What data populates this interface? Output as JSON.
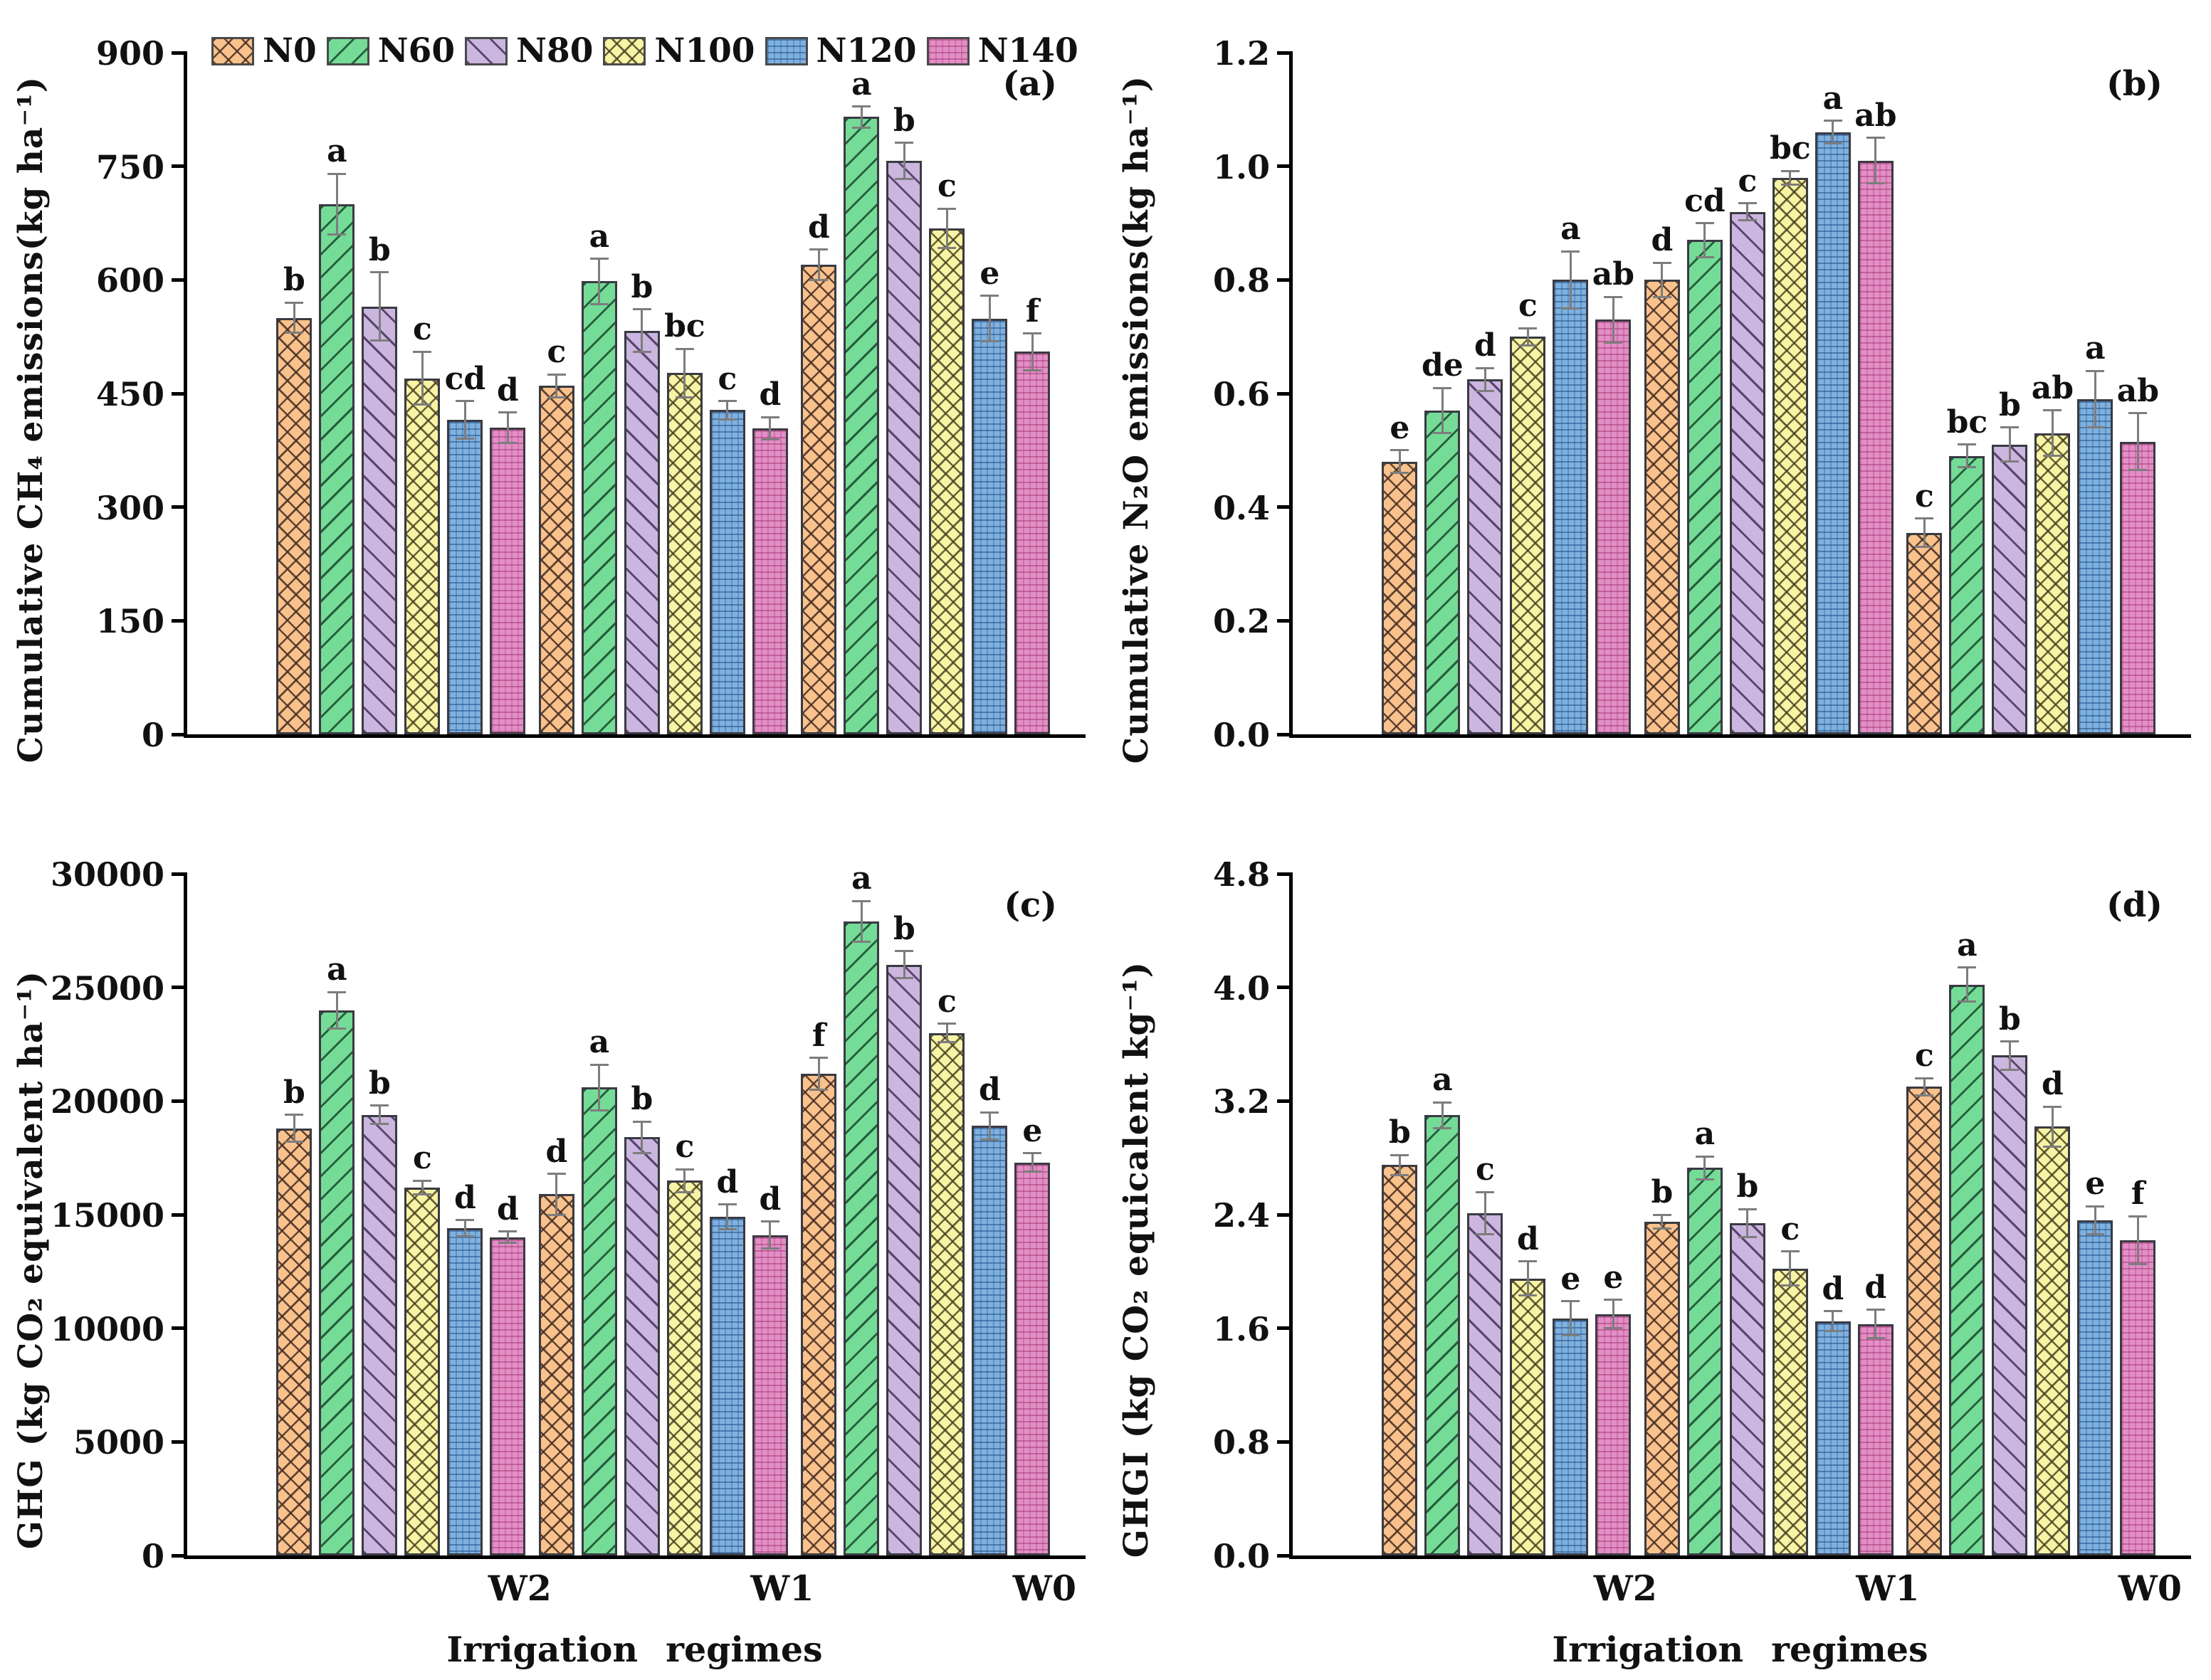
{
  "legend": {
    "items": [
      {
        "label": "N0",
        "color": "#F9C28C",
        "pattern": "diagonal-crosshatch"
      },
      {
        "label": "N60",
        "color": "#74DC97",
        "pattern": "diagonal-forward"
      },
      {
        "label": "N80",
        "color": "#CBB6DF",
        "pattern": "diagonal-back"
      },
      {
        "label": "N100",
        "color": "#F7F5A5",
        "pattern": "diagonal-crosshatch"
      },
      {
        "label": "N120",
        "color": "#7FB1DF",
        "pattern": "fine-grid"
      },
      {
        "label": "N140",
        "color": "#E28FC6",
        "pattern": "fine-grid"
      }
    ]
  },
  "chart_data": [
    {
      "type": "bar",
      "panel_label": "(a)",
      "ylabel": "Cumulative CH₄ emissions(kg ha⁻¹)",
      "xlabel": "",
      "ylim": [
        0,
        900
      ],
      "yticks": [
        "0",
        "150",
        "300",
        "450",
        "600",
        "750",
        "900"
      ],
      "grid": false,
      "legend_position": "top-left-inside",
      "series": [
        "N0",
        "N60",
        "N80",
        "N100",
        "N120",
        "N140"
      ],
      "categories": [
        "W2",
        "W1",
        "W0"
      ],
      "x_tick_labels": [],
      "groups": [
        {
          "category": "W2",
          "values": [
            550,
            700,
            565,
            470,
            415,
            405
          ],
          "errors": [
            20,
            40,
            45,
            35,
            25,
            20
          ],
          "letters": [
            "b",
            "a",
            "b",
            "c",
            "cd",
            "d"
          ]
        },
        {
          "category": "W1",
          "values": [
            460,
            598,
            533,
            477,
            428,
            404
          ],
          "errors": [
            15,
            30,
            28,
            32,
            12,
            15
          ],
          "letters": [
            "c",
            "a",
            "b",
            "bc",
            "c",
            "d"
          ]
        },
        {
          "category": "W0",
          "values": [
            620,
            815,
            757,
            668,
            549,
            505
          ],
          "errors": [
            20,
            14,
            24,
            26,
            30,
            24
          ],
          "letters": [
            "d",
            "a",
            "b",
            "c",
            "e",
            "f"
          ]
        }
      ]
    },
    {
      "type": "bar",
      "panel_label": "(b)",
      "ylabel": "Cumulative N₂O emissions(kg ha⁻¹)",
      "xlabel": "",
      "ylim": [
        0,
        1.2
      ],
      "yticks": [
        "0.0",
        "0.2",
        "0.4",
        "0.6",
        "0.8",
        "1.0",
        "1.2"
      ],
      "grid": false,
      "series": [
        "N0",
        "N60",
        "N80",
        "N100",
        "N120",
        "N140"
      ],
      "categories": [
        "W2",
        "W1",
        "W0"
      ],
      "x_tick_labels": [],
      "groups": [
        {
          "category": "W2",
          "values": [
            0.48,
            0.57,
            0.625,
            0.7,
            0.8,
            0.73
          ],
          "errors": [
            0.02,
            0.04,
            0.02,
            0.015,
            0.05,
            0.04
          ],
          "letters": [
            "e",
            "de",
            "d",
            "c",
            "a",
            "ab"
          ]
        },
        {
          "category": "W1",
          "values": [
            0.8,
            0.87,
            0.92,
            0.98,
            1.06,
            1.01
          ],
          "errors": [
            0.03,
            0.03,
            0.015,
            0.012,
            0.02,
            0.04
          ],
          "letters": [
            "d",
            "cd",
            "c",
            "bc",
            "a",
            "ab"
          ]
        },
        {
          "category": "W0",
          "values": [
            0.355,
            0.49,
            0.51,
            0.53,
            0.59,
            0.515
          ],
          "errors": [
            0.025,
            0.02,
            0.03,
            0.04,
            0.05,
            0.05
          ],
          "letters": [
            "c",
            "bc",
            "b",
            "ab",
            "a",
            "ab"
          ]
        }
      ]
    },
    {
      "type": "bar",
      "panel_label": "(c)",
      "ylabel": "GHG (kg CO₂ equivalent ha⁻¹)",
      "xlabel": "Irrigation  regimes",
      "ylim": [
        0,
        30000
      ],
      "yticks": [
        "0",
        "5000",
        "10000",
        "15000",
        "20000",
        "25000",
        "30000"
      ],
      "grid": false,
      "series": [
        "N0",
        "N60",
        "N80",
        "N100",
        "N120",
        "N140"
      ],
      "categories": [
        "W2",
        "W1",
        "W0"
      ],
      "x_tick_labels": [
        "W2",
        "W1",
        "W0"
      ],
      "groups": [
        {
          "category": "W2",
          "values": [
            18800,
            24000,
            19400,
            16200,
            14400,
            14000
          ],
          "errors": [
            600,
            800,
            400,
            300,
            350,
            250
          ],
          "letters": [
            "b",
            "a",
            "b",
            "c",
            "d",
            "d"
          ]
        },
        {
          "category": "W1",
          "values": [
            15900,
            20600,
            18400,
            16500,
            14900,
            14100
          ],
          "errors": [
            900,
            1000,
            700,
            500,
            550,
            600
          ],
          "letters": [
            "d",
            "a",
            "b",
            "c",
            "d",
            "d"
          ]
        },
        {
          "category": "W0",
          "values": [
            21200,
            27900,
            26000,
            23000,
            18900,
            17300
          ],
          "errors": [
            700,
            900,
            600,
            400,
            600,
            400
          ],
          "letters": [
            "f",
            "a",
            "b",
            "c",
            "d",
            "e"
          ]
        }
      ]
    },
    {
      "type": "bar",
      "panel_label": "(d)",
      "ylabel": "GHGI (kg CO₂ equicalent kg⁻¹)",
      "xlabel": "Irrigation  regimes",
      "ylim": [
        0,
        4.8
      ],
      "yticks": [
        "0.0",
        "0.8",
        "1.6",
        "2.4",
        "3.2",
        "4.0",
        "4.8"
      ],
      "grid": false,
      "series": [
        "N0",
        "N60",
        "N80",
        "N100",
        "N120",
        "N140"
      ],
      "categories": [
        "W2",
        "W1",
        "W0"
      ],
      "x_tick_labels": [
        "W2",
        "W1",
        "W0"
      ],
      "groups": [
        {
          "category": "W2",
          "values": [
            2.75,
            3.1,
            2.41,
            1.95,
            1.67,
            1.7
          ],
          "errors": [
            0.07,
            0.09,
            0.15,
            0.12,
            0.12,
            0.1
          ],
          "letters": [
            "b",
            "a",
            "c",
            "d",
            "e",
            "e"
          ]
        },
        {
          "category": "W1",
          "values": [
            2.35,
            2.73,
            2.34,
            2.02,
            1.65,
            1.63
          ],
          "errors": [
            0.05,
            0.08,
            0.1,
            0.12,
            0.07,
            0.1
          ],
          "letters": [
            "b",
            "a",
            "b",
            "c",
            "d",
            "d"
          ]
        },
        {
          "category": "W0",
          "values": [
            3.3,
            4.02,
            3.52,
            3.02,
            2.36,
            2.22
          ],
          "errors": [
            0.06,
            0.12,
            0.1,
            0.14,
            0.1,
            0.17
          ],
          "letters": [
            "c",
            "a",
            "b",
            "d",
            "e",
            "f"
          ]
        }
      ]
    }
  ]
}
